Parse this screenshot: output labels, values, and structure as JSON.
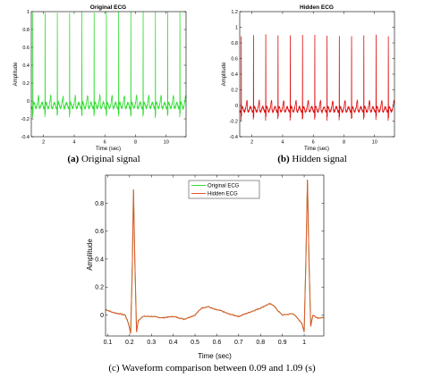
{
  "chart_data": [
    {
      "type": "line",
      "title": "Original ECG",
      "xlabel": "Time (sec)",
      "ylabel": "Amplitude",
      "xlim": [
        1.2,
        11.3
      ],
      "ylim": [
        -0.4,
        1.0
      ],
      "xticks": [
        2,
        4,
        6,
        8,
        10
      ],
      "yticks": [
        -0.4,
        -0.2,
        0,
        0.2,
        0.4,
        0.6,
        0.8,
        1
      ],
      "ytick_labels": [
        "-0.4",
        "-0.2",
        "0",
        "0.2",
        "0.4",
        "0.6",
        "0.8",
        "1"
      ],
      "beat_period": 0.8,
      "first_beat": 1.3,
      "peak": 1.0,
      "baseline": -0.05,
      "color": "#33dd33",
      "grid": false,
      "caption_label": "(a)",
      "caption_text": " Original signal"
    },
    {
      "type": "line",
      "title": "Hidden ECG",
      "xlabel": "Time (sec)",
      "ylabel": "Amplitude",
      "xlim": [
        1.2,
        11.3
      ],
      "ylim": [
        -0.4,
        1.2
      ],
      "xticks": [
        2,
        4,
        6,
        8,
        10
      ],
      "yticks": [
        -0.4,
        -0.2,
        0,
        0.2,
        0.4,
        0.6,
        0.8,
        1,
        1.2
      ],
      "ytick_labels": [
        "-0.4",
        "-0.2",
        "0",
        "0.2",
        "0.4",
        "0.6",
        "0.8",
        "1",
        "1.2"
      ],
      "beat_period": 0.8,
      "first_beat": 1.3,
      "peak": 0.9,
      "baseline": -0.05,
      "color": "#dd1111",
      "grid": false,
      "caption_label": "(b)",
      "caption_text": " Hidden signal"
    },
    {
      "type": "line",
      "title": "",
      "xlabel": "Time (sec)",
      "ylabel": "Amplitude",
      "xlim": [
        0.09,
        1.09
      ],
      "ylim": [
        -0.15,
        1.0
      ],
      "xticks": [
        0.1,
        0.2,
        0.3,
        0.4,
        0.5,
        0.6,
        0.7,
        0.8,
        0.9,
        1
      ],
      "xtick_labels": [
        "0.1",
        "0.2",
        "0.3",
        "0.4",
        "0.5",
        "0.6",
        "0.7",
        "0.8",
        "0.9",
        "1"
      ],
      "yticks": [
        0,
        0.2,
        0.4,
        0.6,
        0.8
      ],
      "ytick_labels": [
        "0",
        "0.2",
        "0.4",
        "0.6",
        "0.8"
      ],
      "legend": "top-center",
      "series": [
        {
          "name": "Original ECG",
          "color": "#33dd33"
        },
        {
          "name": "Hidden ECG",
          "color": "#e6522c"
        }
      ],
      "x": [
        0.09,
        0.12,
        0.15,
        0.18,
        0.195,
        0.205,
        0.212,
        0.218,
        0.224,
        0.232,
        0.24,
        0.26,
        0.3,
        0.35,
        0.4,
        0.45,
        0.5,
        0.53,
        0.56,
        0.59,
        0.62,
        0.65,
        0.7,
        0.75,
        0.8,
        0.84,
        0.86,
        0.88,
        0.9,
        0.95,
        0.99,
        1.0,
        1.008,
        1.015,
        1.022,
        1.03,
        1.04,
        1.06,
        1.09
      ],
      "y": [
        0.04,
        0.02,
        0.01,
        0.0,
        -0.06,
        -0.13,
        0.3,
        0.9,
        0.4,
        -0.12,
        -0.04,
        -0.01,
        -0.01,
        -0.02,
        -0.01,
        -0.03,
        0.0,
        0.05,
        0.06,
        0.04,
        0.03,
        0.01,
        -0.01,
        0.02,
        0.05,
        0.08,
        0.07,
        0.03,
        0.0,
        0.01,
        -0.06,
        -0.12,
        0.4,
        0.97,
        0.4,
        -0.08,
        0.0,
        -0.02,
        -0.02
      ],
      "caption": "(c) Waveform comparison between 0.09 and 1.09 (s)"
    }
  ]
}
